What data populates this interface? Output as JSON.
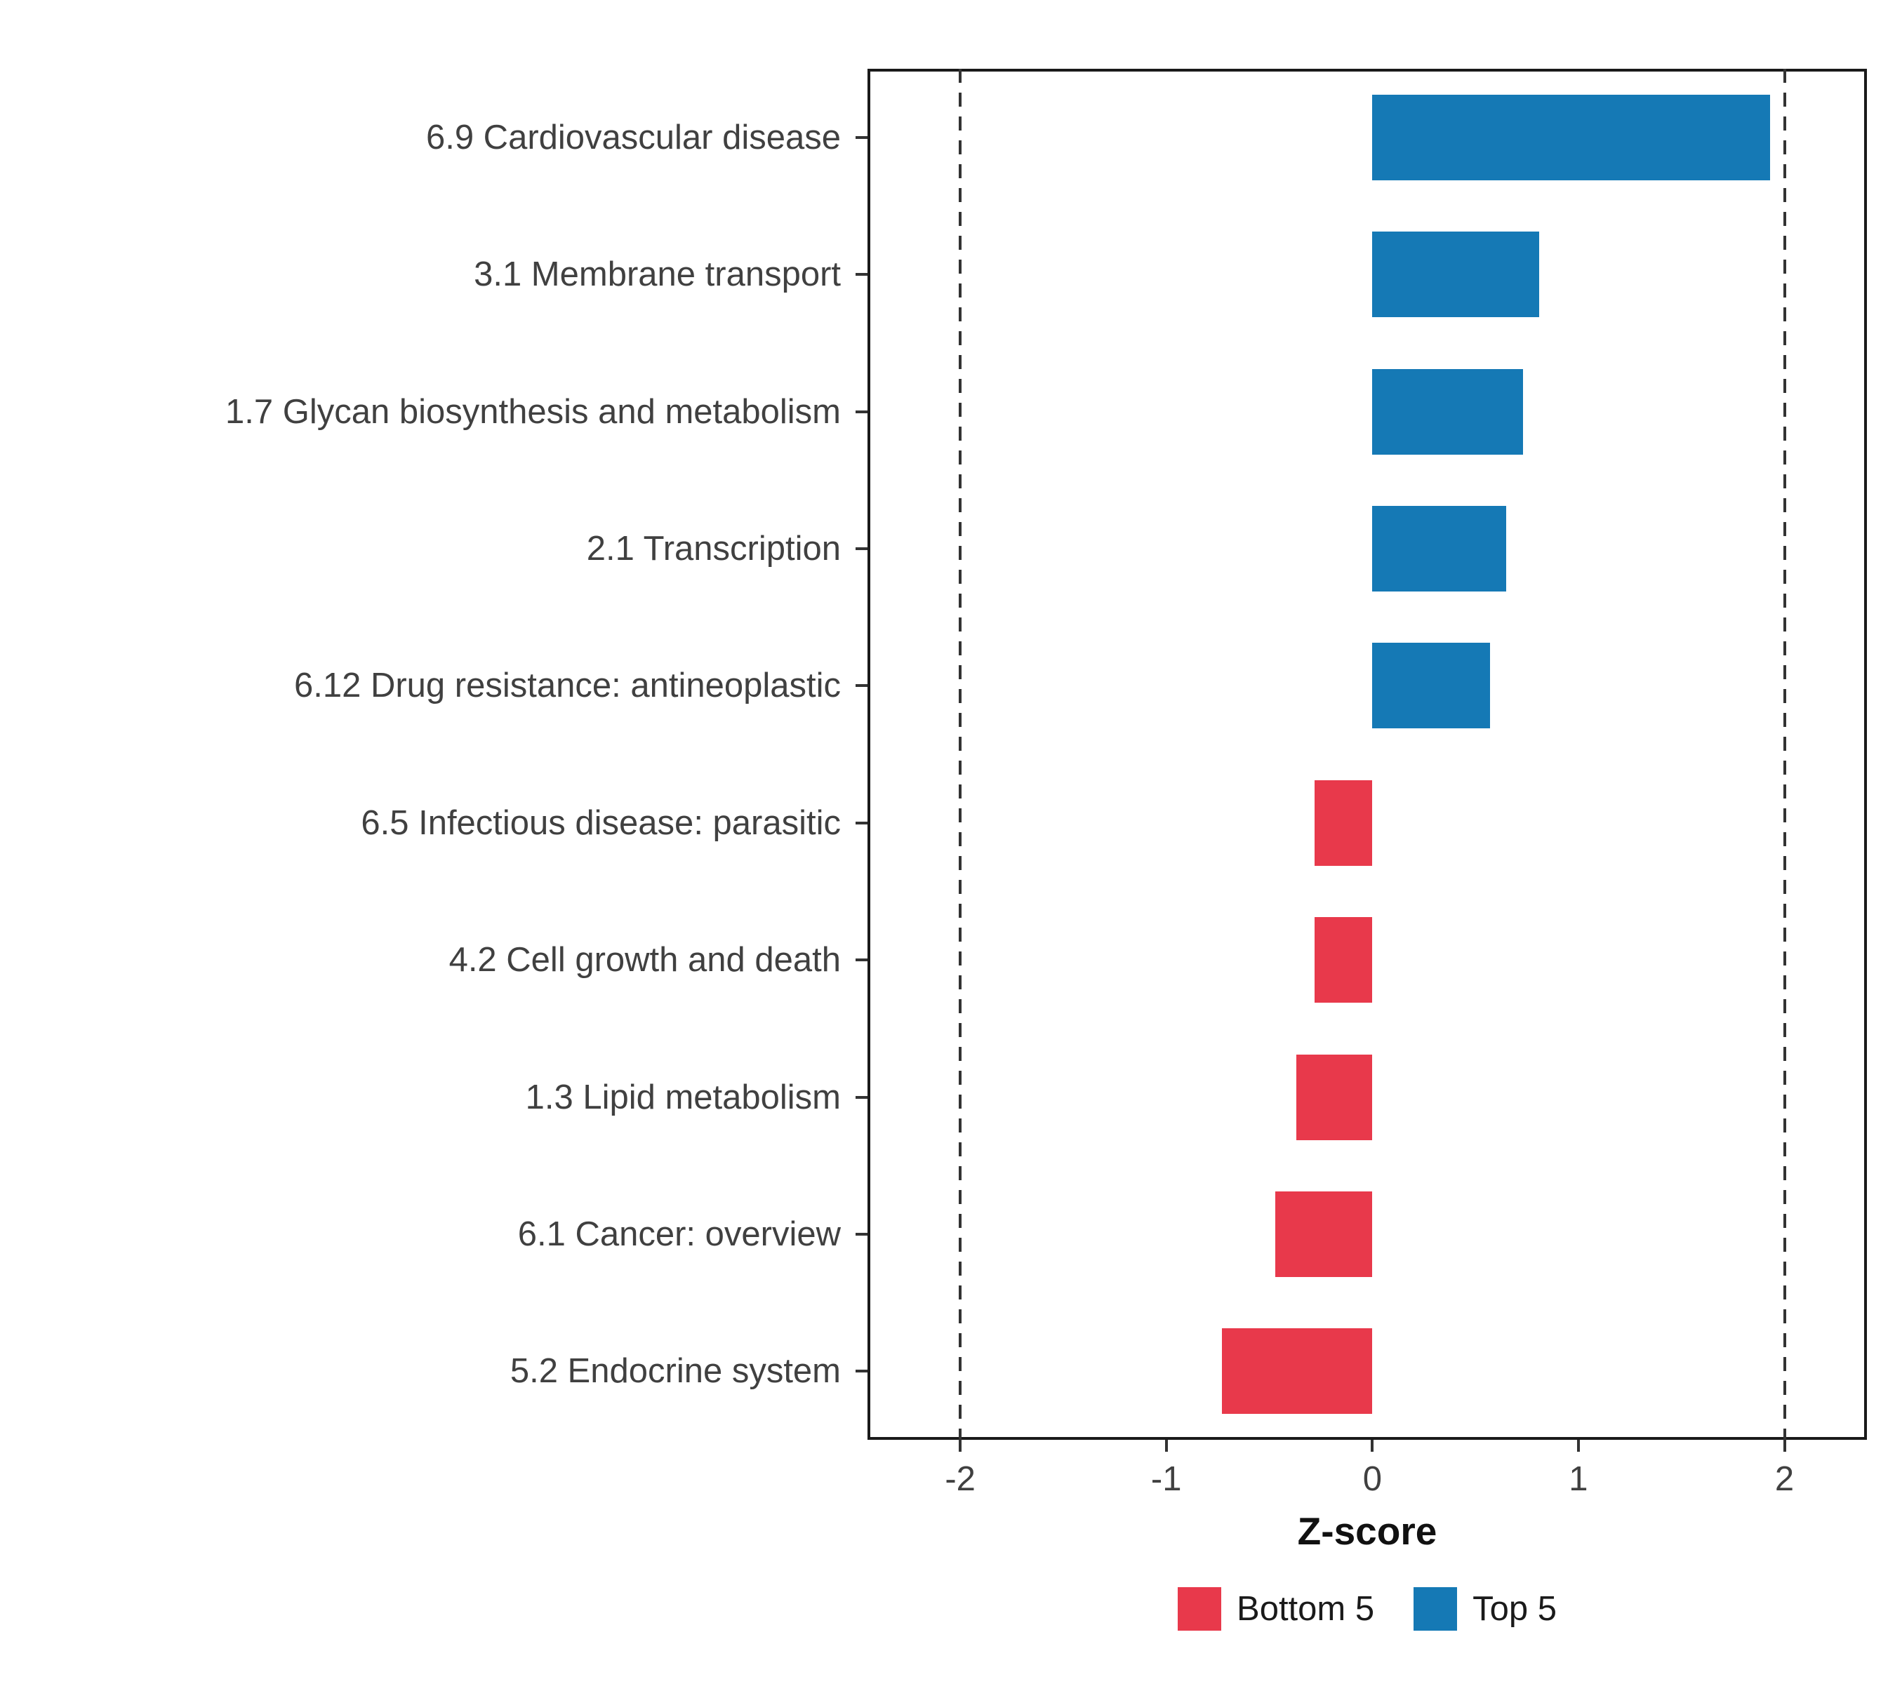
{
  "chart_data": {
    "type": "bar",
    "orientation": "horizontal",
    "title": "",
    "xlabel": "Z-score",
    "ylabel": "",
    "xlim": [
      -2.45,
      2.4
    ],
    "xticks": [
      -2,
      -1,
      0,
      1,
      2
    ],
    "xtick_labels": [
      "-2",
      "-1",
      "0",
      "1",
      "2"
    ],
    "vlines": [
      -2,
      2
    ],
    "categories": [
      "6.9 Cardiovascular disease",
      "3.1 Membrane transport",
      "1.7 Glycan biosynthesis and metabolism",
      "2.1 Transcription",
      "6.12 Drug resistance: antineoplastic",
      "6.5 Infectious disease: parasitic",
      "4.2 Cell growth and death",
      "1.3 Lipid metabolism",
      "6.1 Cancer: overview",
      "5.2 Endocrine system"
    ],
    "values": [
      1.93,
      0.81,
      0.73,
      0.65,
      0.57,
      -0.28,
      -0.28,
      -0.37,
      -0.47,
      -0.73
    ],
    "groups": [
      "Top 5",
      "Top 5",
      "Top 5",
      "Top 5",
      "Top 5",
      "Bottom 5",
      "Bottom 5",
      "Bottom 5",
      "Bottom 5",
      "Bottom 5"
    ],
    "colors": {
      "Bottom 5": "#E8394B",
      "Top 5": "#1579B5"
    },
    "grid": false,
    "panel_border_color": "#1a1a1a",
    "dashed_line_color": "#333333",
    "legend": {
      "position": "bottom",
      "items": [
        {
          "label": "Bottom 5",
          "color": "#E8394B"
        },
        {
          "label": "Top 5",
          "color": "#1579B5"
        }
      ]
    }
  }
}
